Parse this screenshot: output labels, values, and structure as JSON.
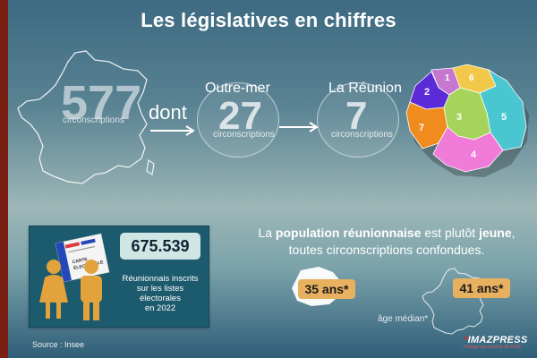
{
  "title": "Les législatives en chiffres",
  "france": {
    "count": "577",
    "unit": "circonscriptions",
    "connector": "dont"
  },
  "outre_mer": {
    "label": "Outre-mer",
    "count": "27",
    "unit": "circonscriptions"
  },
  "reunion": {
    "label": "La Réunion",
    "count": "7",
    "unit": "circonscriptions",
    "district_numbers": [
      "1",
      "2",
      "3",
      "4",
      "5",
      "6",
      "7"
    ]
  },
  "voters": {
    "count": "675.539",
    "description_lines": [
      "Réunionnais inscrits",
      "sur les listes",
      "électorales",
      "en 2022"
    ],
    "card_text": [
      "CARTE",
      "ÉLECTORALE"
    ]
  },
  "population": {
    "text_1": "La ",
    "text_bold_1": "population réunionnaise",
    "text_2": " est plutôt ",
    "text_bold_2": "jeune",
    "text_3": ",",
    "line_2": "toutes circonscriptions confondues."
  },
  "ages": {
    "reunion": "35 ans*",
    "france": "41 ans*",
    "median_label": "âge médian*"
  },
  "source": "Source : Insee",
  "logo": {
    "name": "IMAZPRESS",
    "tagline": "l'image au service de l'info"
  },
  "colors": {
    "left_bar": "#7a1f14",
    "age_badge": "#e8b15f",
    "card_panel": "#1c5a6e",
    "district_1": "#c678d0",
    "district_2": "#5a2bd6",
    "district_3": "#a6d45a",
    "district_4": "#f07bd8",
    "district_5": "#49c6cf",
    "district_6": "#f2c84a",
    "district_7": "#f08c1e"
  }
}
